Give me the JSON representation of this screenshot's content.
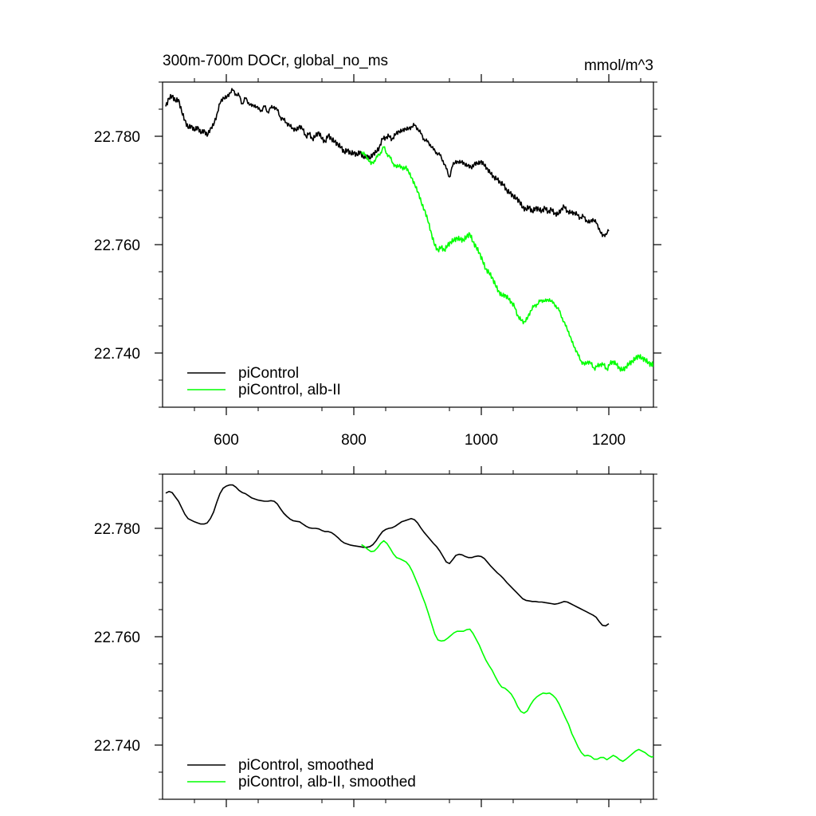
{
  "header": {
    "title": "300m-700m DOCr, global_no_ms",
    "units": "mmol/m^3"
  },
  "chart_data": [
    {
      "type": "line",
      "panel": "top",
      "xlim": [
        500,
        1270
      ],
      "ylim": [
        22.73,
        22.79
      ],
      "x_ticks": [
        600,
        800,
        1000,
        1200
      ],
      "x_tick_labels": [
        "600",
        "800",
        "1000",
        "1200"
      ],
      "y_ticks": [
        22.74,
        22.76,
        22.78
      ],
      "y_tick_labels": [
        "22.740",
        "22.760",
        "22.780"
      ],
      "legend_position": "bottom-left",
      "series": [
        {
          "name": "piControl",
          "color": "#000000",
          "x": [
            505,
            510,
            515,
            520,
            525,
            530,
            535,
            540,
            545,
            550,
            555,
            560,
            565,
            570,
            575,
            580,
            585,
            590,
            595,
            600,
            605,
            610,
            615,
            620,
            625,
            630,
            635,
            640,
            645,
            650,
            655,
            660,
            665,
            670,
            675,
            680,
            685,
            690,
            695,
            700,
            705,
            710,
            715,
            720,
            725,
            730,
            735,
            740,
            745,
            750,
            755,
            760,
            765,
            770,
            775,
            780,
            785,
            790,
            795,
            800,
            805,
            810,
            815,
            820,
            825,
            830,
            835,
            840,
            845,
            850,
            855,
            860,
            865,
            870,
            875,
            880,
            885,
            890,
            895,
            900,
            905,
            910,
            915,
            920,
            925,
            930,
            935,
            940,
            945,
            950,
            955,
            960,
            965,
            970,
            975,
            980,
            985,
            990,
            995,
            1000,
            1005,
            1010,
            1015,
            1020,
            1025,
            1030,
            1035,
            1040,
            1045,
            1050,
            1055,
            1060,
            1065,
            1070,
            1075,
            1080,
            1085,
            1090,
            1095,
            1100,
            1105,
            1110,
            1115,
            1120,
            1125,
            1130,
            1135,
            1140,
            1145,
            1150,
            1155,
            1160,
            1165,
            1170,
            1175,
            1180,
            1185,
            1190,
            1195,
            1200
          ],
          "values": [
            22.7855,
            22.787,
            22.7875,
            22.7865,
            22.7868,
            22.7845,
            22.783,
            22.7815,
            22.782,
            22.781,
            22.7818,
            22.7805,
            22.7812,
            22.78,
            22.7815,
            22.782,
            22.784,
            22.786,
            22.7872,
            22.787,
            22.788,
            22.7885,
            22.7878,
            22.7875,
            22.786,
            22.787,
            22.7862,
            22.7855,
            22.7858,
            22.785,
            22.7848,
            22.7855,
            22.7845,
            22.7852,
            22.7855,
            22.7848,
            22.7835,
            22.783,
            22.7825,
            22.7818,
            22.7815,
            22.781,
            22.782,
            22.7812,
            22.78,
            22.7805,
            22.7795,
            22.78,
            22.7808,
            22.7795,
            22.779,
            22.7802,
            22.7795,
            22.779,
            22.7785,
            22.778,
            22.777,
            22.7775,
            22.7768,
            22.777,
            22.7765,
            22.7772,
            22.776,
            22.7765,
            22.7758,
            22.7768,
            22.777,
            22.778,
            22.7795,
            22.7798,
            22.78,
            22.7795,
            22.7802,
            22.781,
            22.7808,
            22.7815,
            22.7812,
            22.7818,
            22.782,
            22.7815,
            22.7805,
            22.7795,
            22.779,
            22.7785,
            22.7775,
            22.777,
            22.7765,
            22.7755,
            22.774,
            22.7725,
            22.7745,
            22.7755,
            22.775,
            22.7755,
            22.7745,
            22.7748,
            22.774,
            22.7752,
            22.7748,
            22.7755,
            22.7745,
            22.774,
            22.773,
            22.7725,
            22.772,
            22.7715,
            22.771,
            22.77,
            22.7695,
            22.769,
            22.7685,
            22.768,
            22.7668,
            22.7665,
            22.767,
            22.766,
            22.7668,
            22.7665,
            22.7662,
            22.7668,
            22.766,
            22.7665,
            22.7658,
            22.7655,
            22.7665,
            22.767,
            22.7662,
            22.7658,
            22.766,
            22.7655,
            22.765,
            22.7652,
            22.7645,
            22.764,
            22.7648,
            22.764,
            22.763,
            22.7615,
            22.762,
            22.7625
          ],
          "raw": true
        },
        {
          "name": "piControl, alb-II",
          "color": "#00ff00",
          "x": [
            812,
            817,
            822,
            827,
            832,
            837,
            842,
            847,
            852,
            857,
            862,
            867,
            872,
            877,
            882,
            887,
            892,
            897,
            902,
            907,
            912,
            917,
            922,
            927,
            932,
            937,
            942,
            947,
            952,
            957,
            962,
            967,
            972,
            977,
            982,
            987,
            992,
            997,
            1002,
            1007,
            1012,
            1017,
            1022,
            1027,
            1032,
            1037,
            1042,
            1047,
            1052,
            1057,
            1062,
            1067,
            1072,
            1077,
            1082,
            1087,
            1092,
            1097,
            1102,
            1107,
            1112,
            1117,
            1122,
            1127,
            1132,
            1137,
            1142,
            1147,
            1152,
            1157,
            1162,
            1167,
            1172,
            1177,
            1182,
            1187,
            1192,
            1197,
            1202,
            1207,
            1212,
            1217,
            1222,
            1227,
            1232,
            1237,
            1242,
            1247,
            1252,
            1257,
            1262,
            1267,
            1270
          ],
          "values": [
            22.7772,
            22.7765,
            22.776,
            22.7748,
            22.7755,
            22.7762,
            22.777,
            22.778,
            22.7768,
            22.776,
            22.775,
            22.7742,
            22.7748,
            22.7738,
            22.7745,
            22.773,
            22.7722,
            22.7705,
            22.7695,
            22.7672,
            22.7662,
            22.764,
            22.762,
            22.7598,
            22.759,
            22.7595,
            22.759,
            22.7598,
            22.7605,
            22.7608,
            22.7612,
            22.761,
            22.7608,
            22.7615,
            22.762,
            22.7605,
            22.7595,
            22.7585,
            22.757,
            22.7555,
            22.7548,
            22.754,
            22.7525,
            22.7515,
            22.7505,
            22.7508,
            22.75,
            22.7495,
            22.7485,
            22.747,
            22.746,
            22.7458,
            22.7462,
            22.7478,
            22.7485,
            22.749,
            22.7495,
            22.7498,
            22.7495,
            22.75,
            22.7492,
            22.7488,
            22.7478,
            22.7465,
            22.745,
            22.744,
            22.742,
            22.741,
            22.7395,
            22.7385,
            22.7378,
            22.7385,
            22.738,
            22.7372,
            22.7375,
            22.738,
            22.7378,
            22.737,
            22.738,
            22.7385,
            22.7378,
            22.7372,
            22.7368,
            22.7375,
            22.738,
            22.7385,
            22.739,
            22.7395,
            22.739,
            22.7388,
            22.7382,
            22.7378,
            22.738
          ],
          "raw": true
        }
      ]
    },
    {
      "type": "line",
      "panel": "bottom",
      "xlim": [
        500,
        1270
      ],
      "ylim": [
        22.73,
        22.79
      ],
      "x_ticks": [
        600,
        800,
        1000,
        1200
      ],
      "y_ticks": [
        22.74,
        22.76,
        22.78
      ],
      "y_tick_labels": [
        "22.740",
        "22.760",
        "22.780"
      ],
      "legend_position": "bottom-left",
      "series": [
        {
          "name": "piControl, smoothed",
          "color": "#000000",
          "x": [
            505,
            510,
            515,
            520,
            525,
            530,
            535,
            540,
            545,
            550,
            555,
            560,
            565,
            570,
            575,
            580,
            585,
            590,
            595,
            600,
            605,
            610,
            615,
            620,
            625,
            630,
            635,
            640,
            645,
            650,
            655,
            660,
            665,
            670,
            675,
            680,
            685,
            690,
            695,
            700,
            705,
            710,
            715,
            720,
            725,
            730,
            735,
            740,
            745,
            750,
            755,
            760,
            765,
            770,
            775,
            780,
            785,
            790,
            795,
            800,
            805,
            810,
            815,
            820,
            825,
            830,
            835,
            840,
            845,
            850,
            855,
            860,
            865,
            870,
            875,
            880,
            885,
            890,
            895,
            900,
            905,
            910,
            915,
            920,
            925,
            930,
            935,
            940,
            945,
            950,
            955,
            960,
            965,
            970,
            975,
            980,
            985,
            990,
            995,
            1000,
            1005,
            1010,
            1015,
            1020,
            1025,
            1030,
            1035,
            1040,
            1045,
            1050,
            1055,
            1060,
            1065,
            1070,
            1075,
            1080,
            1085,
            1090,
            1095,
            1100,
            1105,
            1110,
            1115,
            1120,
            1125,
            1130,
            1135,
            1140,
            1145,
            1150,
            1155,
            1160,
            1165,
            1170,
            1175,
            1180,
            1185,
            1190,
            1195,
            1200
          ],
          "values": [
            22.7865,
            22.7868,
            22.7866,
            22.7858,
            22.785,
            22.7838,
            22.7826,
            22.7818,
            22.7815,
            22.7812,
            22.781,
            22.7808,
            22.7808,
            22.781,
            22.7818,
            22.783,
            22.7848,
            22.7864,
            22.7874,
            22.7878,
            22.788,
            22.788,
            22.7876,
            22.787,
            22.7866,
            22.7864,
            22.786,
            22.7856,
            22.7854,
            22.7852,
            22.7851,
            22.785,
            22.785,
            22.7851,
            22.785,
            22.7845,
            22.7836,
            22.7828,
            22.7822,
            22.7817,
            22.7814,
            22.7813,
            22.7812,
            22.7808,
            22.7804,
            22.7801,
            22.78,
            22.78,
            22.7799,
            22.7796,
            22.7794,
            22.7794,
            22.7792,
            22.7788,
            22.7783,
            22.7777,
            22.7773,
            22.7771,
            22.7769,
            22.7768,
            22.7767,
            22.7766,
            22.7765,
            22.7765,
            22.7766,
            22.777,
            22.7777,
            22.7786,
            22.7794,
            22.7798,
            22.78,
            22.7801,
            22.7804,
            22.7808,
            22.7812,
            22.7814,
            22.7816,
            22.7818,
            22.7816,
            22.781,
            22.7801,
            22.7793,
            22.7786,
            22.7779,
            22.7772,
            22.7766,
            22.7758,
            22.7748,
            22.7738,
            22.7735,
            22.7742,
            22.775,
            22.7752,
            22.7751,
            22.7748,
            22.7746,
            22.7746,
            22.7748,
            22.7749,
            22.7748,
            22.7744,
            22.7737,
            22.773,
            22.7724,
            22.7718,
            22.7713,
            22.7707,
            22.77,
            22.7694,
            22.7688,
            22.7682,
            22.7676,
            22.767,
            22.7667,
            22.7666,
            22.7665,
            22.7665,
            22.7664,
            22.7664,
            22.7663,
            22.7662,
            22.7661,
            22.766,
            22.7661,
            22.7663,
            22.7665,
            22.7664,
            22.7661,
            22.7658,
            22.7655,
            22.7652,
            22.7649,
            22.7646,
            22.7643,
            22.764,
            22.7636,
            22.7628,
            22.7621,
            22.762,
            22.7624
          ],
          "raw": false
        },
        {
          "name": "piControl, alb-II, smoothed",
          "color": "#00ff00",
          "x": [
            812,
            817,
            822,
            827,
            832,
            837,
            842,
            847,
            852,
            857,
            862,
            867,
            872,
            877,
            882,
            887,
            892,
            897,
            902,
            907,
            912,
            917,
            922,
            927,
            932,
            937,
            942,
            947,
            952,
            957,
            962,
            967,
            972,
            977,
            982,
            987,
            992,
            997,
            1002,
            1007,
            1012,
            1017,
            1022,
            1027,
            1032,
            1037,
            1042,
            1047,
            1052,
            1057,
            1062,
            1067,
            1072,
            1077,
            1082,
            1087,
            1092,
            1097,
            1102,
            1107,
            1112,
            1117,
            1122,
            1127,
            1132,
            1137,
            1142,
            1147,
            1152,
            1157,
            1162,
            1167,
            1172,
            1177,
            1182,
            1187,
            1192,
            1197,
            1202,
            1207,
            1212,
            1217,
            1222,
            1227,
            1232,
            1237,
            1242,
            1247,
            1252,
            1257,
            1262,
            1267,
            1270
          ],
          "values": [
            22.777,
            22.7766,
            22.7761,
            22.7757,
            22.7758,
            22.7764,
            22.7772,
            22.7777,
            22.7772,
            22.7763,
            22.7753,
            22.7746,
            22.7744,
            22.7741,
            22.7738,
            22.7731,
            22.772,
            22.7706,
            22.7692,
            22.7676,
            22.7661,
            22.7643,
            22.7624,
            22.7605,
            22.7594,
            22.7592,
            22.7593,
            22.7597,
            22.7602,
            22.7607,
            22.761,
            22.761,
            22.761,
            22.7613,
            22.7614,
            22.7606,
            22.7595,
            22.7584,
            22.757,
            22.7557,
            22.7547,
            22.7538,
            22.7526,
            22.7515,
            22.7507,
            22.7505,
            22.75,
            22.7494,
            22.7484,
            22.7471,
            22.7462,
            22.7459,
            22.7463,
            22.7474,
            22.7483,
            22.7489,
            22.7493,
            22.7496,
            22.7495,
            22.7496,
            22.7492,
            22.7486,
            22.7476,
            22.7463,
            22.745,
            22.7438,
            22.7421,
            22.7409,
            22.7396,
            22.7386,
            22.738,
            22.7381,
            22.7379,
            22.7374,
            22.7374,
            22.7377,
            22.7377,
            22.7373,
            22.7377,
            22.7381,
            22.7378,
            22.7373,
            22.737,
            22.7374,
            22.7379,
            22.7384,
            22.7389,
            22.7392,
            22.7389,
            22.7386,
            22.7381,
            22.7378,
            22.7379
          ],
          "raw": false
        }
      ]
    }
  ]
}
